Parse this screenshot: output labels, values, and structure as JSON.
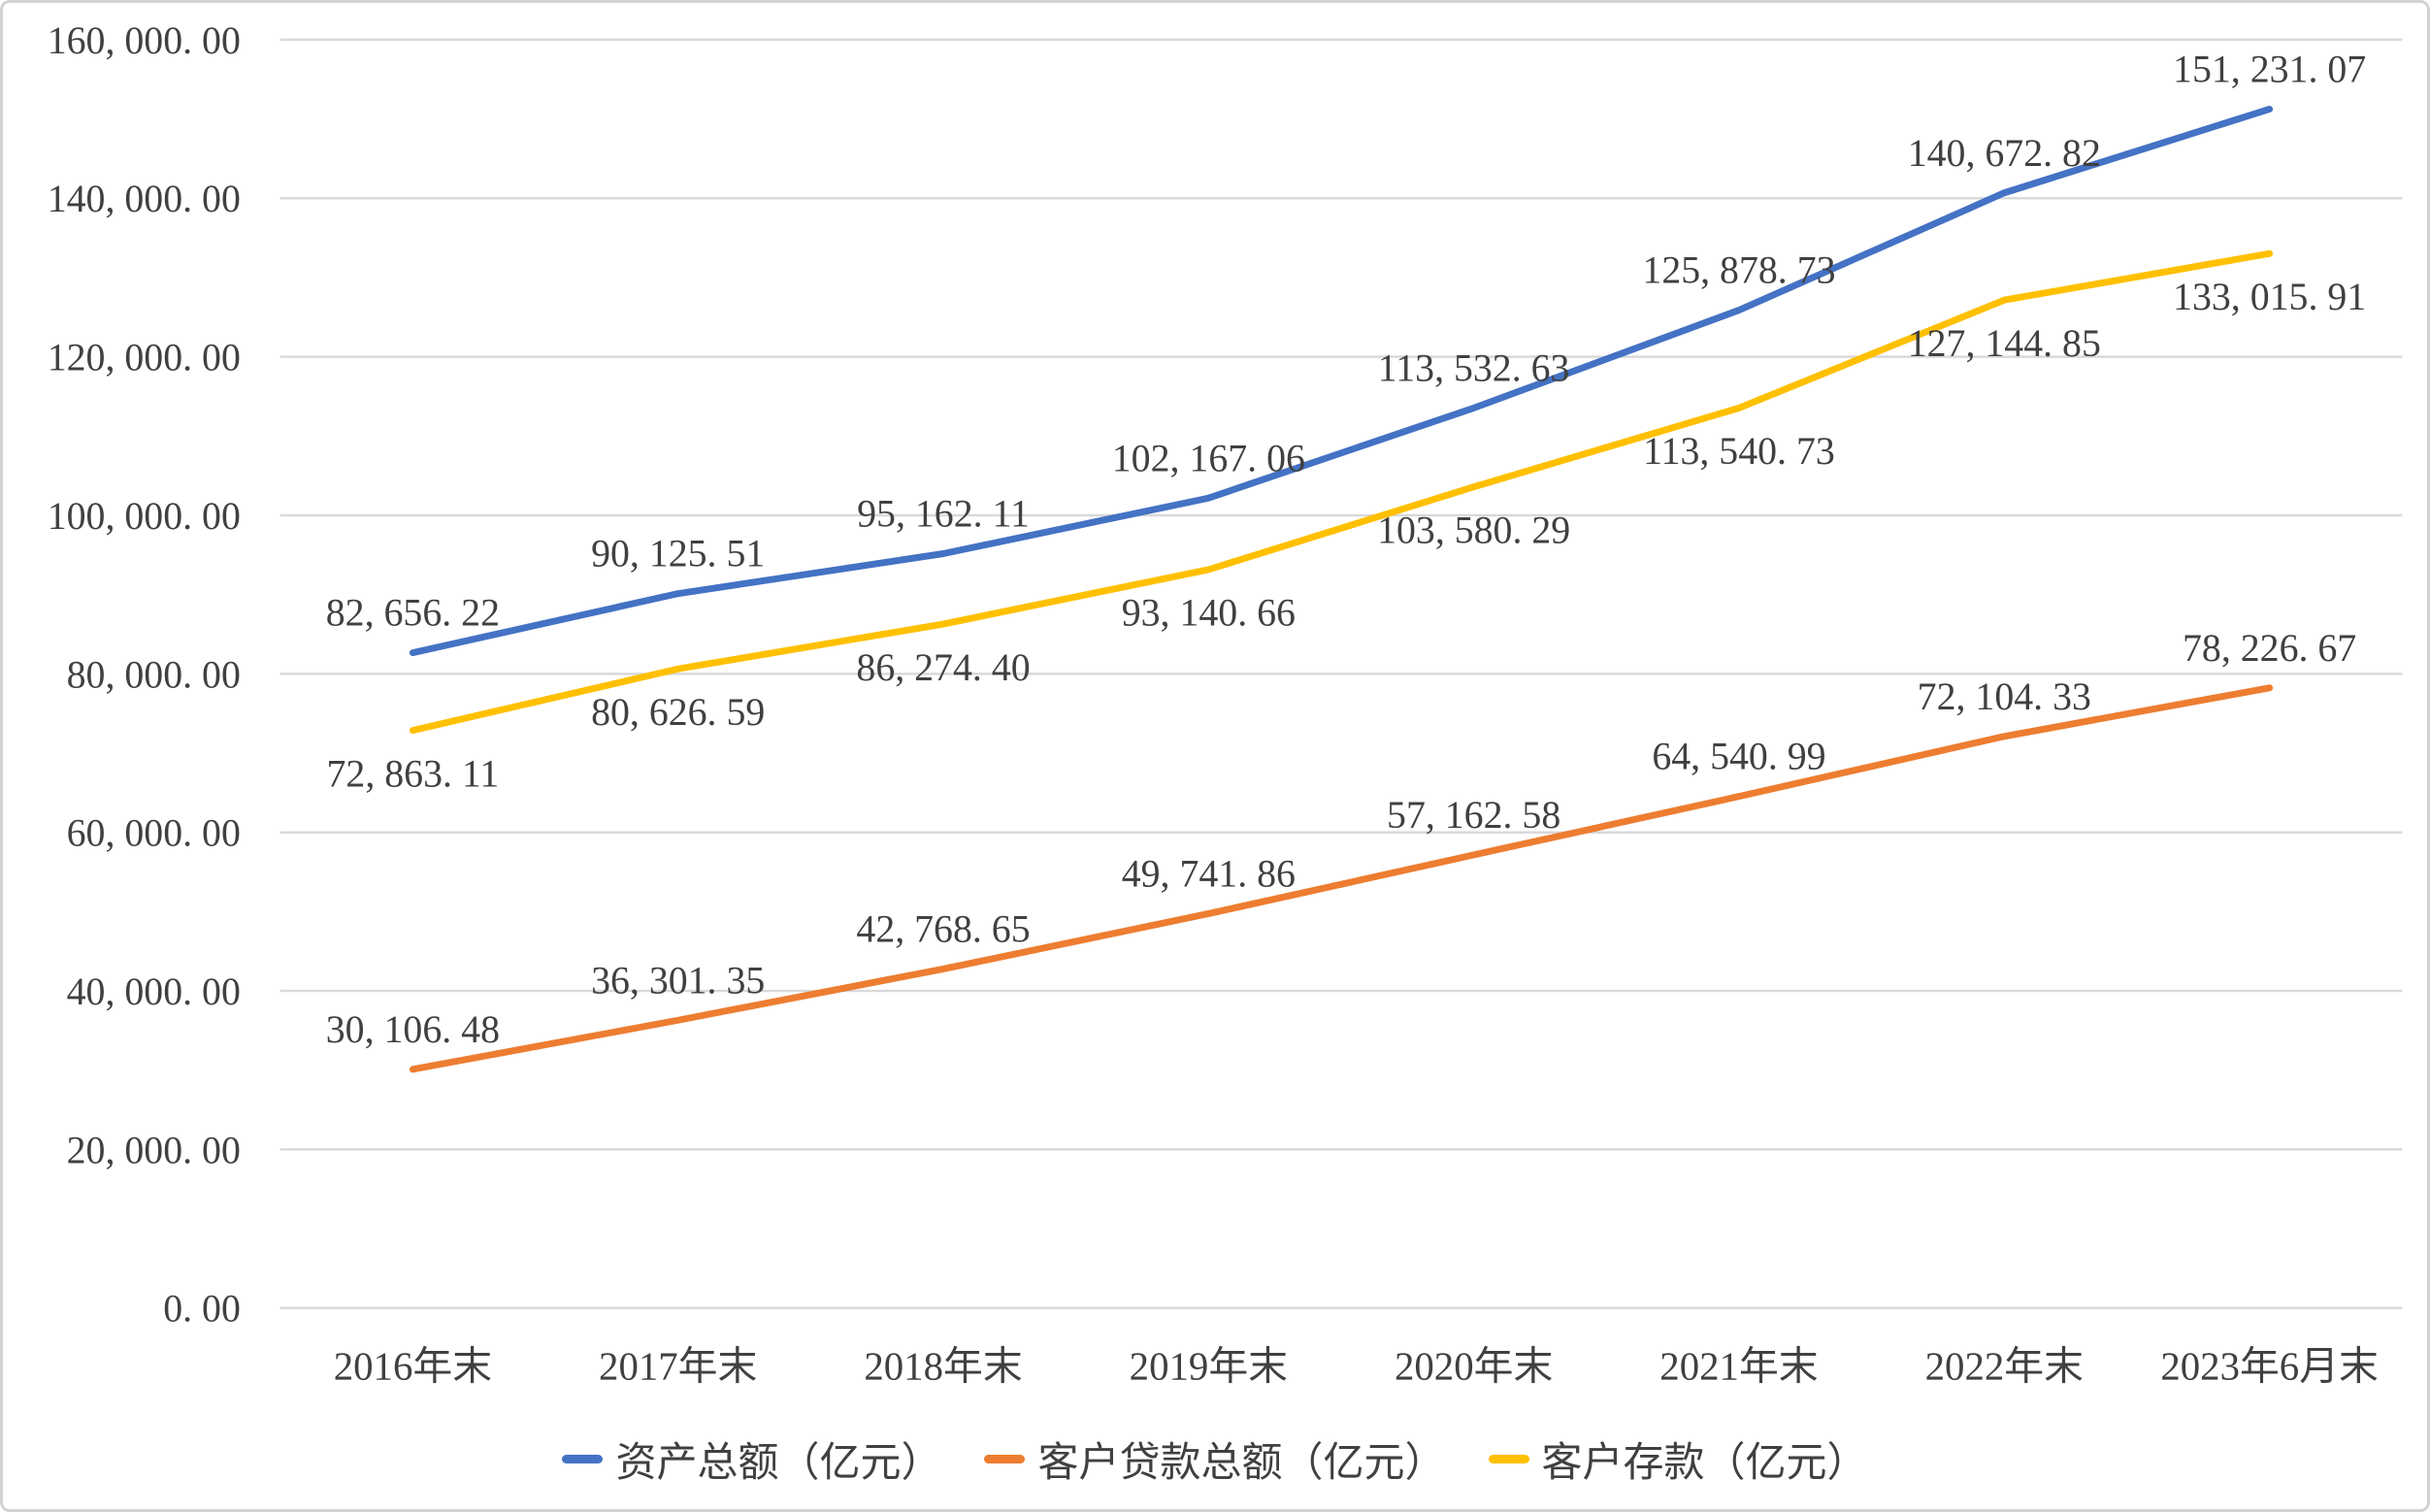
{
  "chart_data": {
    "type": "line",
    "title": "",
    "unit_note": "亿元",
    "categories": [
      "2016年末",
      "2017年末",
      "2018年末",
      "2019年末",
      "2020年末",
      "2021年末",
      "2022年末",
      "2023年6月末"
    ],
    "series": [
      {
        "key": "total-assets",
        "name": "资产总额（亿元）",
        "color": "#4472C4",
        "label_position": "above",
        "values": [
          82656.22,
          90125.51,
          95162.11,
          102167.06,
          113532.63,
          125878.73,
          140672.82,
          151231.07
        ],
        "labels": [
          "82, 656. 22",
          "90, 125. 51",
          "95, 162. 11",
          "102, 167. 06",
          "113, 532. 63",
          "125, 878. 73",
          "140, 672. 82",
          "151, 231. 07"
        ]
      },
      {
        "key": "customer-loans",
        "name": "客户贷款总额（亿元）",
        "color": "#ED7D31",
        "label_position": "above",
        "values": [
          30106.48,
          36301.35,
          42768.65,
          49741.86,
          57162.58,
          64540.99,
          72104.33,
          78226.67
        ],
        "labels": [
          "30, 106. 48",
          "36, 301. 35",
          "42, 768. 65",
          "49, 741. 86",
          "57, 162. 58",
          "64, 540. 99",
          "72, 104. 33",
          "78, 226. 67"
        ]
      },
      {
        "key": "customer-deposits",
        "name": "客户存款（亿元）",
        "color": "#FFC000",
        "label_position": "below",
        "values": [
          72863.11,
          80626.59,
          86274.4,
          93140.66,
          103580.29,
          113540.73,
          127144.85,
          133015.91
        ],
        "labels": [
          "72, 863. 11",
          "80, 626. 59",
          "86, 274. 40",
          "93, 140. 66",
          "103, 580. 29",
          "113, 540. 73",
          "127, 144. 85",
          "133, 015. 91"
        ]
      }
    ],
    "y_axis": {
      "min": 0,
      "max": 160000,
      "step": 20000,
      "tick_labels_top_to_bottom": [
        "160, 000. 00",
        "140, 000. 00",
        "120, 000. 00",
        "100, 000. 00",
        "80, 000. 00",
        "60, 000. 00",
        "40, 000. 00",
        "20, 000. 00",
        "0. 00"
      ]
    },
    "grid": true,
    "legend_position": "bottom",
    "colors": {
      "gridline": "#D9D9D9",
      "text": "#404040",
      "background": "#FFFFFF",
      "frame_border": "#D3D3D3"
    }
  }
}
